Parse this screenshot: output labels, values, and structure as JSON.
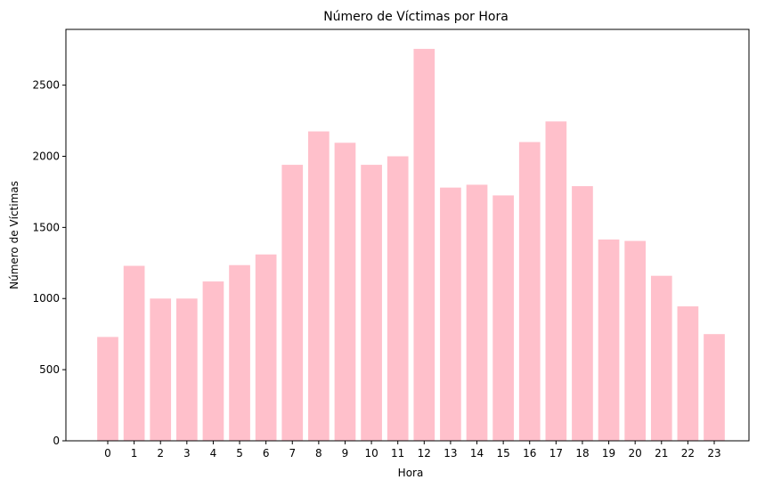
{
  "chart_data": {
    "type": "bar",
    "title": "Número de Víctimas por Hora",
    "xlabel": "Hora",
    "ylabel": "Número de Víctimas",
    "categories": [
      "0",
      "1",
      "2",
      "3",
      "4",
      "5",
      "6",
      "7",
      "8",
      "9",
      "10",
      "11",
      "12",
      "13",
      "14",
      "15",
      "16",
      "17",
      "18",
      "19",
      "20",
      "21",
      "22",
      "23"
    ],
    "values": [
      730,
      1230,
      1000,
      1000,
      1120,
      1235,
      1310,
      1940,
      2175,
      2095,
      1940,
      2000,
      2755,
      1780,
      1800,
      1725,
      2100,
      2245,
      1790,
      1415,
      1405,
      1160,
      945,
      750
    ],
    "ylim": [
      0,
      2892
    ],
    "yticks": [
      0,
      500,
      1000,
      1500,
      2000,
      2500
    ],
    "grid": false,
    "bar_color": "#ffc0cb"
  }
}
